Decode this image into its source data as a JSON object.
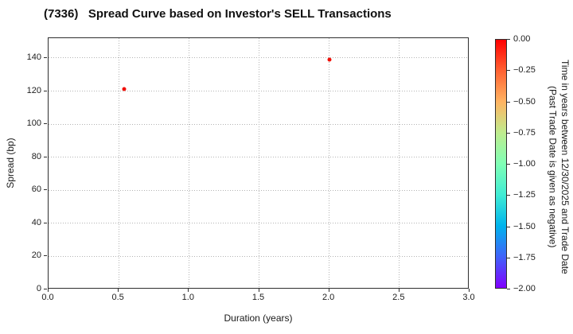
{
  "title": "(7336)   Spread Curve based on Investor's SELL Transactions",
  "chart_data": {
    "type": "scatter",
    "title": "(7336)   Spread Curve based on Investor's SELL Transactions",
    "xlabel": "Duration (years)",
    "ylabel": "Spread (bp)",
    "xlim": [
      0.0,
      3.0
    ],
    "ylim": [
      0,
      152
    ],
    "grid": true,
    "grid_style": "dotted",
    "xticks": [
      0.0,
      0.5,
      1.0,
      1.5,
      2.0,
      2.5,
      3.0
    ],
    "xtick_labels": [
      "0.0",
      "0.5",
      "1.0",
      "1.5",
      "2.0",
      "2.5",
      "3.0"
    ],
    "yticks": [
      0,
      20,
      40,
      60,
      80,
      100,
      120,
      140
    ],
    "ytick_labels": [
      "0",
      "20",
      "40",
      "60",
      "80",
      "100",
      "120",
      "140"
    ],
    "points": [
      {
        "x": 0.54,
        "y": 121,
        "color": "#f01008",
        "time_value": 0.0
      },
      {
        "x": 2.0,
        "y": 139,
        "color": "#f01008",
        "time_value": 0.0
      }
    ],
    "colorbar": {
      "label_line1": "Time in years between 12/30/2025 and Trade Date",
      "label_line2": "(Past Trade Date is given as negative)",
      "vmin": -2.0,
      "vmax": 0.0,
      "colormap": "rainbow",
      "tick_labels": [
        "0.00",
        "−0.25",
        "−0.50",
        "−0.75",
        "−1.00",
        "−1.25",
        "−1.50",
        "−1.75",
        "−2.00"
      ],
      "gradient_stops_top_to_bottom": [
        "#ff0000",
        "#ff6232",
        "#ffb462",
        "#bfec8e",
        "#80ffb5",
        "#40ecd4",
        "#00b4ec",
        "#4062fa",
        "#8000ff"
      ]
    }
  }
}
